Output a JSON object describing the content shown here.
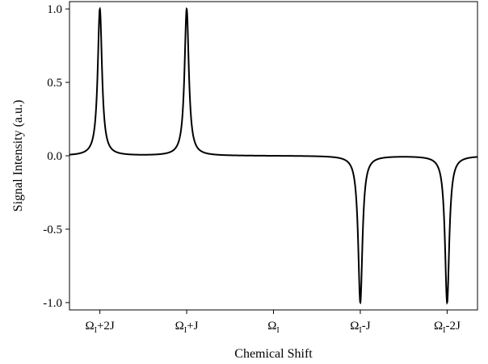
{
  "chart_data": {
    "type": "line",
    "title": "",
    "xlabel": "Chemical Shift",
    "ylabel": "Signal Intensity (a.u.)",
    "ylim": [
      -1.05,
      1.05
    ],
    "y_ticks": [
      "1.0",
      "0.5",
      "0.0",
      "-0.5",
      "-1.0"
    ],
    "y_tick_values": [
      1.0,
      0.5,
      0.0,
      -0.5,
      -1.0
    ],
    "x_tick_values": [
      2,
      1,
      0,
      -1,
      -2
    ],
    "x_ticks": [
      {
        "main": "Ω",
        "sub": "I",
        "suffix": "+2J"
      },
      {
        "main": "Ω",
        "sub": "I",
        "suffix": "+J"
      },
      {
        "main": "Ω",
        "sub": "I",
        "suffix": ""
      },
      {
        "main": "Ω",
        "sub": "I",
        "suffix": "-J"
      },
      {
        "main": "Ω",
        "sub": "I",
        "suffix": "-2J"
      }
    ],
    "x_axis_reversed": true,
    "xlim": [
      2.35,
      -2.35
    ],
    "grid": false,
    "legend": "none",
    "series": [
      {
        "peaks": [
          {
            "x": 2,
            "y": 1.0
          },
          {
            "x": 1,
            "y": 1.0
          },
          {
            "x": -1,
            "y": -1.0
          },
          {
            "x": -2,
            "y": -1.0
          }
        ],
        "linewidth_half": 0.03,
        "color": "#000000"
      }
    ]
  }
}
